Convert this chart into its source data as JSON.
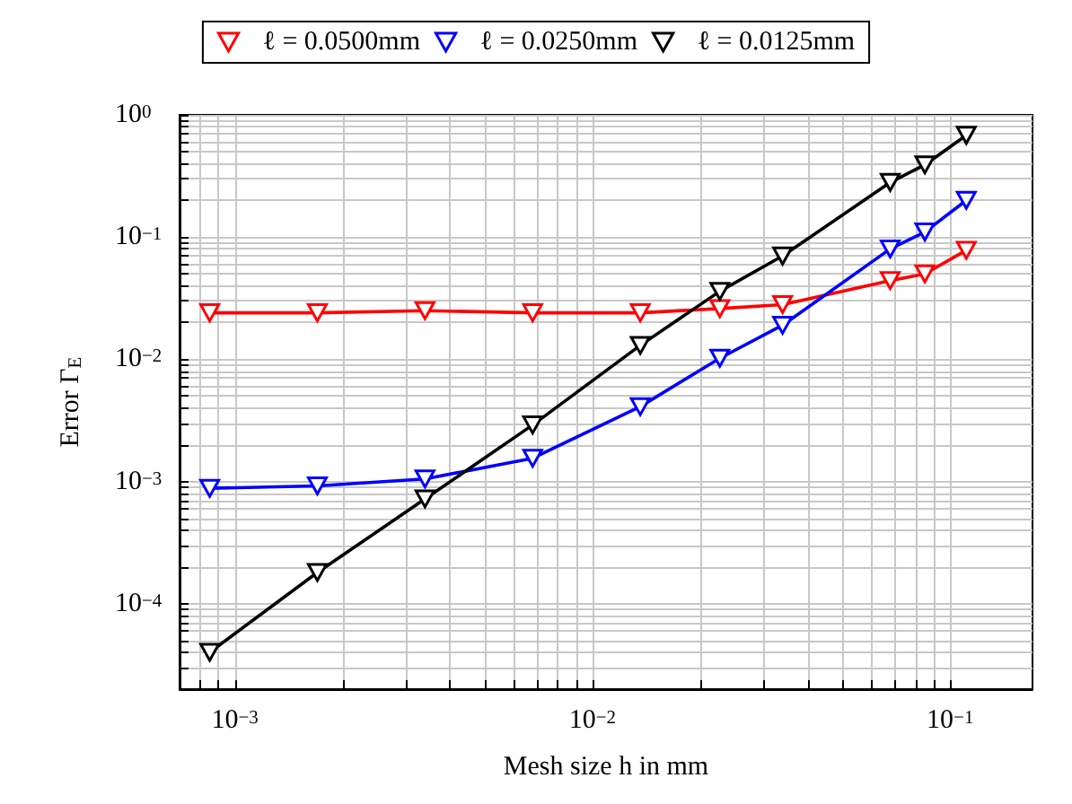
{
  "chart_data": {
    "type": "line",
    "xlabel": "Mesh size h in mm",
    "ylabel": "Error Γ$_{E}$",
    "log": "xy",
    "grid": true,
    "legend": "top",
    "marker": "triangle",
    "line_style": "solid",
    "xlim": [
      0.0007,
      0.17
    ],
    "ylim": [
      2e-05,
      1
    ],
    "xticks": [
      {
        "value": 0.0008,
        "label": null
      },
      {
        "value": 0.0009,
        "label": null
      },
      {
        "value": 0.001,
        "label": "10$^{−3}$"
      },
      {
        "value": 0.002,
        "label": null
      },
      {
        "value": 0.003,
        "label": null
      },
      {
        "value": 0.004,
        "label": null
      },
      {
        "value": 0.005,
        "label": null
      },
      {
        "value": 0.006,
        "label": null
      },
      {
        "value": 0.007,
        "label": null
      },
      {
        "value": 0.008,
        "label": null
      },
      {
        "value": 0.009,
        "label": null
      },
      {
        "value": 0.01,
        "label": "10$^{−2}$"
      },
      {
        "value": 0.02,
        "label": null
      },
      {
        "value": 0.03,
        "label": null
      },
      {
        "value": 0.04,
        "label": null
      },
      {
        "value": 0.05,
        "label": null
      },
      {
        "value": 0.06,
        "label": null
      },
      {
        "value": 0.07,
        "label": null
      },
      {
        "value": 0.08,
        "label": null
      },
      {
        "value": 0.09,
        "label": null
      },
      {
        "value": 0.1,
        "label": "10$^{−1}$"
      }
    ],
    "yticks": [
      {
        "value": 2e-05,
        "label": null
      },
      {
        "value": 3e-05,
        "label": null
      },
      {
        "value": 4e-05,
        "label": null
      },
      {
        "value": 5e-05,
        "label": null
      },
      {
        "value": 6e-05,
        "label": null
      },
      {
        "value": 7e-05,
        "label": null
      },
      {
        "value": 8e-05,
        "label": null
      },
      {
        "value": 9e-05,
        "label": null
      },
      {
        "value": 0.0001,
        "label": "10$^{−4}$"
      },
      {
        "value": 0.0002,
        "label": null
      },
      {
        "value": 0.0003,
        "label": null
      },
      {
        "value": 0.0004,
        "label": null
      },
      {
        "value": 0.0005,
        "label": null
      },
      {
        "value": 0.0006,
        "label": null
      },
      {
        "value": 0.0007,
        "label": null
      },
      {
        "value": 0.0008,
        "label": null
      },
      {
        "value": 0.0009,
        "label": null
      },
      {
        "value": 0.001,
        "label": "10$^{−3}$"
      },
      {
        "value": 0.002,
        "label": null
      },
      {
        "value": 0.003,
        "label": null
      },
      {
        "value": 0.004,
        "label": null
      },
      {
        "value": 0.005,
        "label": null
      },
      {
        "value": 0.006,
        "label": null
      },
      {
        "value": 0.007,
        "label": null
      },
      {
        "value": 0.008,
        "label": null
      },
      {
        "value": 0.009,
        "label": null
      },
      {
        "value": 0.01,
        "label": "10$^{−2}$"
      },
      {
        "value": 0.02,
        "label": null
      },
      {
        "value": 0.03,
        "label": null
      },
      {
        "value": 0.04,
        "label": null
      },
      {
        "value": 0.05,
        "label": null
      },
      {
        "value": 0.06,
        "label": null
      },
      {
        "value": 0.07,
        "label": null
      },
      {
        "value": 0.08,
        "label": null
      },
      {
        "value": 0.09,
        "label": null
      },
      {
        "value": 0.1,
        "label": "10$^{−1}$"
      },
      {
        "value": 0.2,
        "label": null
      },
      {
        "value": 0.3,
        "label": null
      },
      {
        "value": 0.4,
        "label": null
      },
      {
        "value": 0.5,
        "label": null
      },
      {
        "value": 0.6,
        "label": null
      },
      {
        "value": 0.7,
        "label": null
      },
      {
        "value": 0.8,
        "label": null
      },
      {
        "value": 0.9,
        "label": null
      },
      {
        "value": 1,
        "label": "10$^{0}$"
      }
    ],
    "x": [
      0.00085,
      0.0017,
      0.0034,
      0.0068,
      0.0136,
      0.0227,
      0.034,
      0.068,
      0.085,
      0.111
    ],
    "series": [
      {
        "name": "ℓ = 0.0500mm",
        "color": "#ff0000",
        "values": [
          0.024,
          0.024,
          0.025,
          0.024,
          0.024,
          0.026,
          0.028,
          0.044,
          0.05,
          0.078
        ]
      },
      {
        "name": "ℓ = 0.0250mm",
        "color": "#0000ff",
        "values": [
          0.00088,
          0.00092,
          0.00105,
          0.00155,
          0.0041,
          0.0102,
          0.019,
          0.08,
          0.11,
          0.2
        ]
      },
      {
        "name": "ℓ = 0.0125mm",
        "color": "#000000",
        "values": [
          4e-05,
          0.00018,
          0.00072,
          0.0029,
          0.013,
          0.036,
          0.07,
          0.28,
          0.39,
          0.68
        ]
      }
    ]
  }
}
